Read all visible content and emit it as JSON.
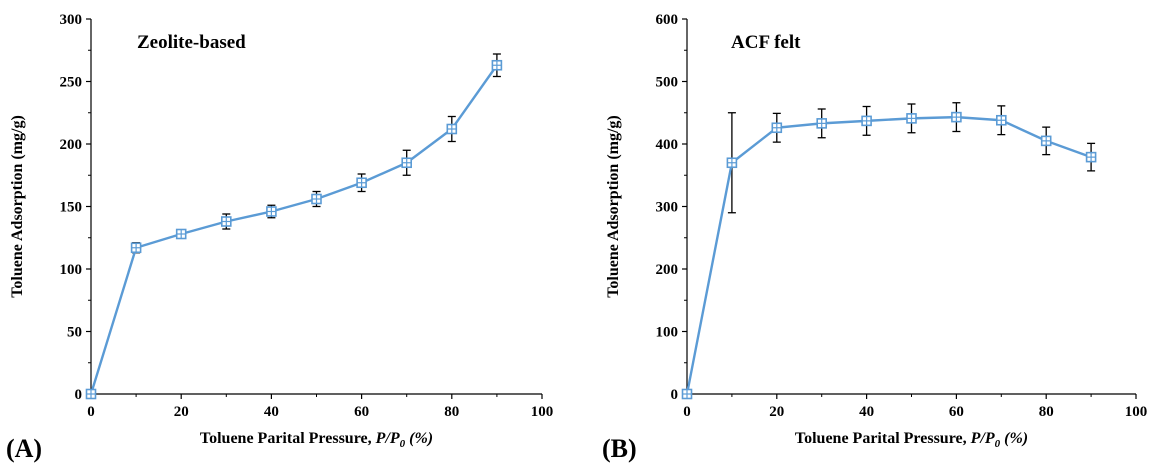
{
  "chart_data": [
    {
      "type": "line",
      "panel_label": "(A)",
      "title": "Zeolite-based",
      "xlabel_text": "Toluene Parital Pressure, ",
      "xlabel_var1": "P/P",
      "xlabel_sub": "0",
      "xlabel_unit": " (%)",
      "ylabel": "Toluene Adsorption (mg/g)",
      "xlim": [
        0,
        100
      ],
      "ylim": [
        0,
        300
      ],
      "xticks": [
        0,
        20,
        40,
        60,
        80,
        100
      ],
      "yticks": [
        0,
        50,
        100,
        150,
        200,
        250,
        300
      ],
      "grid": false,
      "series": [
        {
          "x": [
            0,
            10,
            20,
            30,
            40,
            50,
            60,
            70,
            80,
            90
          ],
          "y": [
            0,
            117,
            128,
            138,
            146,
            156,
            169,
            185,
            212,
            263
          ],
          "err": [
            0,
            4,
            3,
            6,
            5,
            6,
            7,
            10,
            10,
            9
          ],
          "color": "#5b9bd5",
          "marker": "square-cross"
        }
      ]
    },
    {
      "type": "line",
      "panel_label": "(B)",
      "title": "ACF felt",
      "xlabel_text": "Toluene Parital Pressure, ",
      "xlabel_var1": "P/P",
      "xlabel_sub": "0",
      "xlabel_unit": " (%)",
      "ylabel": "Toluene Adsorption (mg/g)",
      "xlim": [
        0,
        100
      ],
      "ylim": [
        0,
        600
      ],
      "xticks": [
        0,
        20,
        40,
        60,
        80,
        100
      ],
      "yticks": [
        0,
        100,
        200,
        300,
        400,
        500,
        600
      ],
      "grid": false,
      "series": [
        {
          "x": [
            0,
            10,
            20,
            30,
            40,
            50,
            60,
            70,
            80,
            90
          ],
          "y": [
            0,
            370,
            426,
            433,
            437,
            441,
            443,
            438,
            405,
            379
          ],
          "err": [
            0,
            80,
            23,
            23,
            23,
            23,
            23,
            23,
            22,
            22
          ],
          "color": "#5b9bd5",
          "marker": "square-cross"
        }
      ]
    }
  ]
}
